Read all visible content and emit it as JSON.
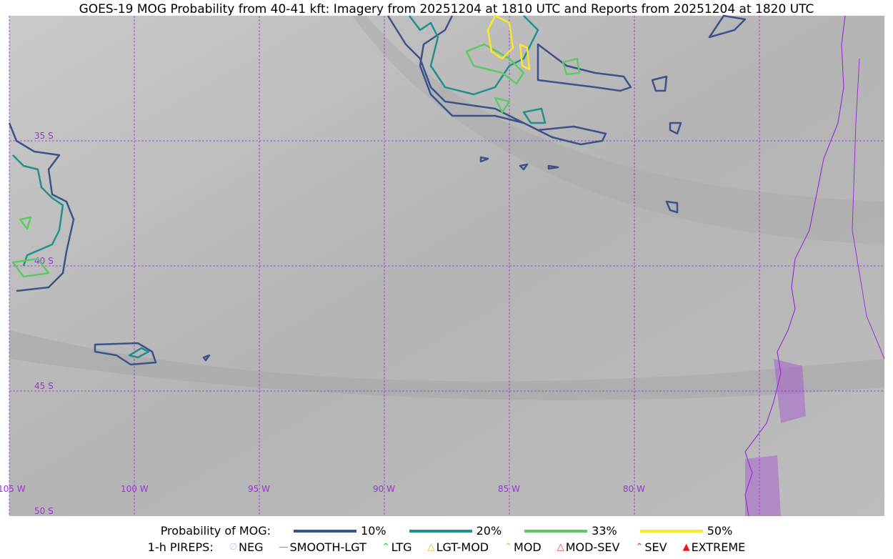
{
  "title": "GOES-19 MOG Probability from 40-41 kft: Imagery from 20251204 at 1810 UTC and Reports from 20251204 at 1820 UTC",
  "map": {
    "lat_labels": [
      "35 S",
      "40 S",
      "45 S",
      "50 S"
    ],
    "lon_labels": [
      "105 W",
      "100 W",
      "95 W",
      "90 W",
      "85 W",
      "80 W"
    ],
    "grid_color": "#9b30d9",
    "coastline_color": "#9b30d9"
  },
  "legend": {
    "probability_label": "Probability of MOG:",
    "levels": [
      {
        "label": "10%",
        "color": "#3b528b"
      },
      {
        "label": "20%",
        "color": "#21908d"
      },
      {
        "label": "33%",
        "color": "#5ec962"
      },
      {
        "label": "50%",
        "color": "#fde725"
      }
    ],
    "pireps_label": "1-h PIREPS:",
    "pireps": [
      {
        "label": "NEG",
        "icon": "neg-icon",
        "color": "#c8c8f0"
      },
      {
        "label": "SMOOTH-LGT",
        "icon": "line-icon",
        "color": "#22dd22"
      },
      {
        "label": "LTG",
        "icon": "caret-icon",
        "color": "#00dd00"
      },
      {
        "label": "LGT-MOD",
        "icon": "hat-icon",
        "color": "#f5b021"
      },
      {
        "label": "MOD",
        "icon": "caret-icon",
        "color": "#f5b021"
      },
      {
        "label": "MOD-SEV",
        "icon": "double-hat-icon",
        "color": "#f03030"
      },
      {
        "label": "SEV",
        "icon": "double-caret-icon",
        "color": "#f03030"
      },
      {
        "label": "EXTREME",
        "icon": "filled-triangle-icon",
        "color": "#f01010"
      }
    ]
  }
}
